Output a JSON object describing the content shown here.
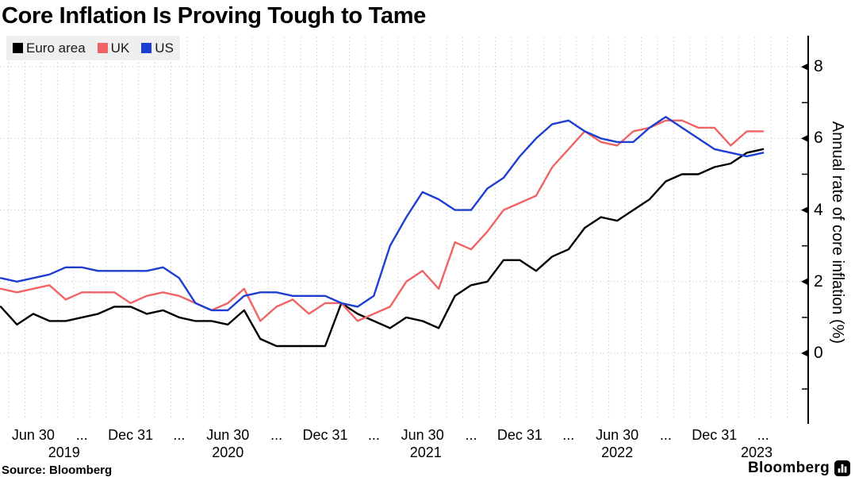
{
  "title": "Core Inflation Is Proving Tough to Tame",
  "source": "Source: Bloomberg",
  "branding": {
    "wordmark": "Bloomberg",
    "icon": "bar-chart-icon"
  },
  "colors": {
    "euro_area": "#000000",
    "uk": "#ef6464",
    "us": "#1e3ed2",
    "grid": "#cfcfcf",
    "legend_bg": "#efefef",
    "axis": "#000000"
  },
  "legend": {
    "position": "top-left",
    "items": [
      "Euro area",
      "UK",
      "US"
    ]
  },
  "chart_data": {
    "type": "line",
    "title": "Core Inflation Is Proving Tough to Tame",
    "ylabel": "Annual rate of core inflation (%)",
    "xlabel": "",
    "x_frequency": "monthly",
    "x_start": "2019-04",
    "x_end": "2023-03",
    "ylim": [
      -2,
      8.9
    ],
    "grid": true,
    "legend_position": "top-left",
    "yticks_major": [
      8,
      6,
      4,
      2,
      0
    ],
    "yticks_minor": [
      7,
      5,
      3,
      1,
      -1
    ],
    "grid_y_values": [
      0,
      2,
      4,
      6,
      8
    ],
    "xticks": [
      {
        "label": "Jun 30",
        "m": 2
      },
      {
        "label": "...",
        "m": 5
      },
      {
        "label": "Dec 31",
        "m": 8
      },
      {
        "label": "...",
        "m": 11
      },
      {
        "label": "Jun 30",
        "m": 14
      },
      {
        "label": "...",
        "m": 17
      },
      {
        "label": "Dec 31",
        "m": 20
      },
      {
        "label": "...",
        "m": 23
      },
      {
        "label": "Jun 30",
        "m": 26
      },
      {
        "label": "...",
        "m": 29
      },
      {
        "label": "Dec 31",
        "m": 32
      },
      {
        "label": "...",
        "m": 35
      },
      {
        "label": "Jun 30",
        "m": 38
      },
      {
        "label": "...",
        "m": 41
      },
      {
        "label": "Dec 31",
        "m": 44
      },
      {
        "label": "...",
        "m": 47
      }
    ],
    "year_labels": [
      {
        "label": "2019",
        "m": 3.9
      },
      {
        "label": "2020",
        "m": 14
      },
      {
        "label": "2021",
        "m": 26.2
      },
      {
        "label": "2022",
        "m": 38
      },
      {
        "label": "2023",
        "m": 46.6
      }
    ],
    "x": [
      "2019-04",
      "2019-05",
      "2019-06",
      "2019-07",
      "2019-08",
      "2019-09",
      "2019-10",
      "2019-11",
      "2019-12",
      "2020-01",
      "2020-02",
      "2020-03",
      "2020-04",
      "2020-05",
      "2020-06",
      "2020-07",
      "2020-08",
      "2020-09",
      "2020-10",
      "2020-11",
      "2020-12",
      "2021-01",
      "2021-02",
      "2021-03",
      "2021-04",
      "2021-05",
      "2021-06",
      "2021-07",
      "2021-08",
      "2021-09",
      "2021-10",
      "2021-11",
      "2021-12",
      "2022-01",
      "2022-02",
      "2022-03",
      "2022-04",
      "2022-05",
      "2022-06",
      "2022-07",
      "2022-08",
      "2022-09",
      "2022-10",
      "2022-11",
      "2022-12",
      "2023-01",
      "2023-02",
      "2023-03"
    ],
    "series": [
      {
        "name": "Euro area",
        "color": "#000000",
        "values": [
          1.3,
          0.8,
          1.1,
          0.9,
          0.9,
          1.0,
          1.1,
          1.3,
          1.3,
          1.1,
          1.2,
          1.0,
          0.9,
          0.9,
          0.8,
          1.2,
          0.4,
          0.2,
          0.2,
          0.2,
          0.2,
          1.4,
          1.1,
          0.9,
          0.7,
          1.0,
          0.9,
          0.7,
          1.6,
          1.9,
          2.0,
          2.6,
          2.6,
          2.3,
          2.7,
          2.9,
          3.5,
          3.8,
          3.7,
          4.0,
          4.3,
          4.8,
          5.0,
          5.0,
          5.2,
          5.3,
          5.6,
          5.7
        ]
      },
      {
        "name": "UK",
        "color": "#ef6464",
        "values": [
          1.8,
          1.7,
          1.8,
          1.9,
          1.5,
          1.7,
          1.7,
          1.7,
          1.4,
          1.6,
          1.7,
          1.6,
          1.4,
          1.2,
          1.4,
          1.8,
          0.9,
          1.3,
          1.5,
          1.1,
          1.4,
          1.4,
          0.9,
          1.1,
          1.3,
          2.0,
          2.3,
          1.8,
          3.1,
          2.9,
          3.4,
          4.0,
          4.2,
          4.4,
          5.2,
          5.7,
          6.2,
          5.9,
          5.8,
          6.2,
          6.3,
          6.5,
          6.5,
          6.3,
          6.3,
          5.8,
          6.2,
          6.2
        ]
      },
      {
        "name": "US",
        "color": "#1e3ed2",
        "values": [
          2.1,
          2.0,
          2.1,
          2.2,
          2.4,
          2.4,
          2.3,
          2.3,
          2.3,
          2.3,
          2.4,
          2.1,
          1.4,
          1.2,
          1.2,
          1.6,
          1.7,
          1.7,
          1.6,
          1.6,
          1.6,
          1.4,
          1.3,
          1.6,
          3.0,
          3.8,
          4.5,
          4.3,
          4.0,
          4.0,
          4.6,
          4.9,
          5.5,
          6.0,
          6.4,
          6.5,
          6.2,
          6.0,
          5.9,
          5.9,
          6.3,
          6.6,
          6.3,
          6.0,
          5.7,
          5.6,
          5.5,
          5.6
        ]
      }
    ]
  }
}
